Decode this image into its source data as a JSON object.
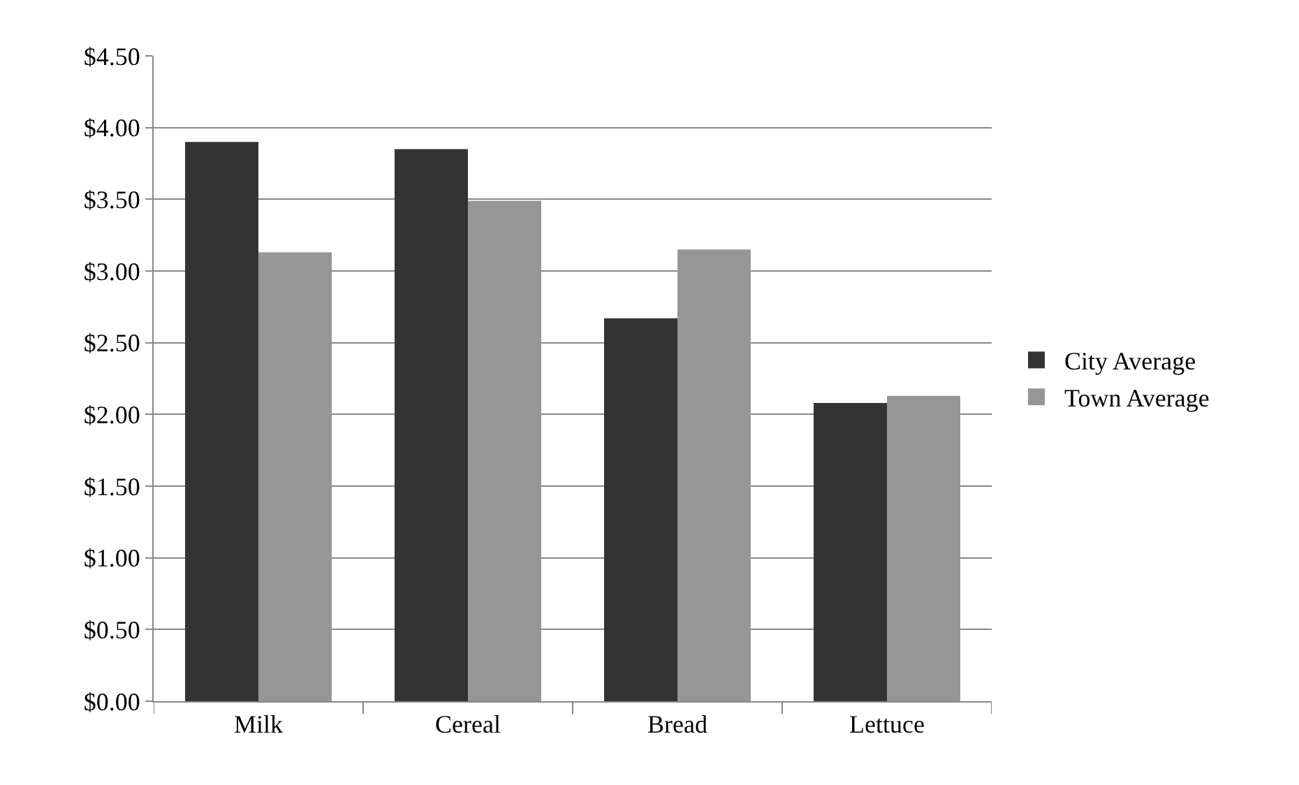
{
  "chart_data": {
    "type": "bar",
    "categories": [
      "Milk",
      "Cereal",
      "Bread",
      "Lettuce"
    ],
    "series": [
      {
        "name": "City Average",
        "color": "#333333",
        "values": [
          3.9,
          3.85,
          2.67,
          2.08
        ]
      },
      {
        "name": "Town Average",
        "color": "#969696",
        "values": [
          3.13,
          3.49,
          3.15,
          2.13
        ]
      }
    ],
    "ylim": [
      0,
      4.5
    ],
    "yticks": [
      {
        "value": 0,
        "label": "$0.00"
      },
      {
        "value": 0.5,
        "label": "$0.50"
      },
      {
        "value": 1,
        "label": "$1.00"
      },
      {
        "value": 1.5,
        "label": "$1.50"
      },
      {
        "value": 2,
        "label": "$2.00"
      },
      {
        "value": 2.5,
        "label": "$2.50"
      },
      {
        "value": 3,
        "label": "$3.00"
      },
      {
        "value": 3.5,
        "label": "$3.50"
      },
      {
        "value": 4,
        "label": "$4.00"
      },
      {
        "value": 4.5,
        "label": "$4.50"
      }
    ],
    "grid": "y",
    "legend": "right"
  }
}
